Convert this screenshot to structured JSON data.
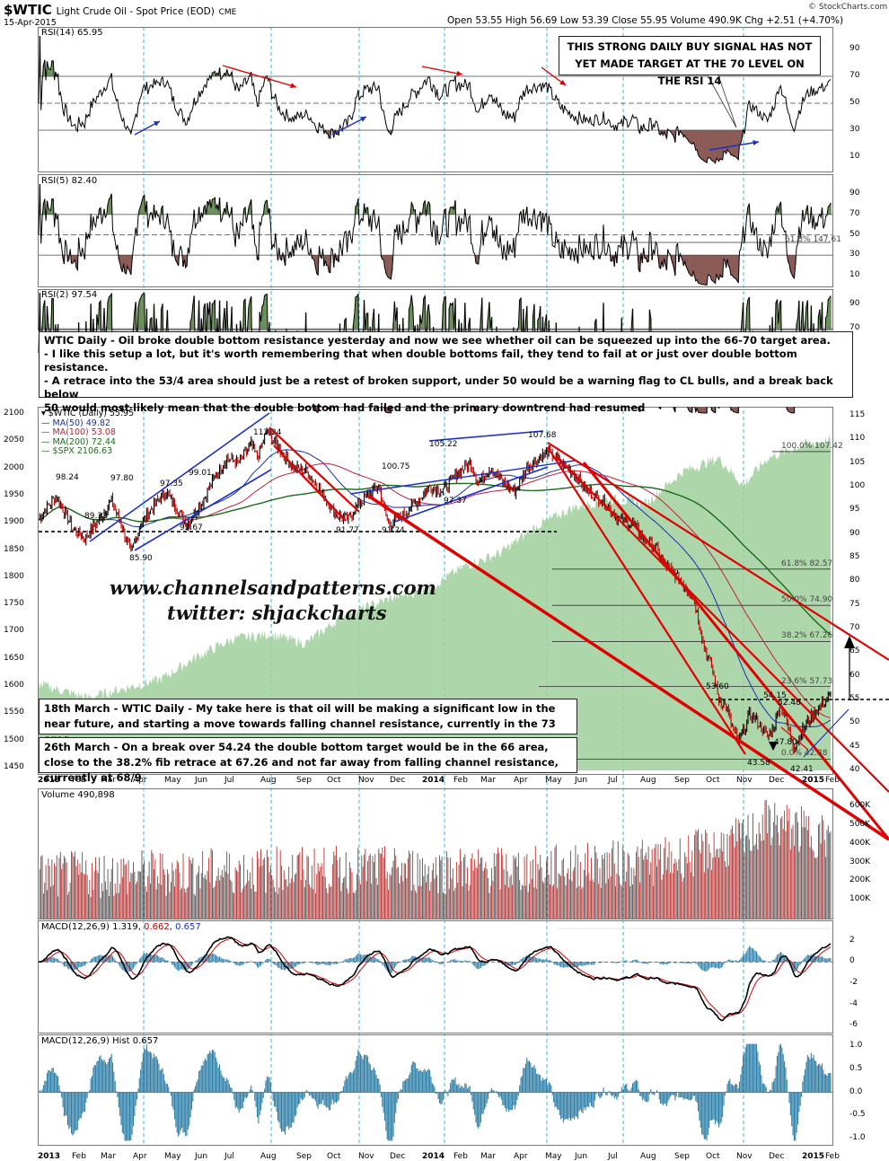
{
  "header": {
    "symbol": "$WTIC",
    "name": "Light Crude Oil - Spot Price (EOD)",
    "exchange": "CME",
    "date": "15-Apr-2015",
    "open_label": "Open",
    "open": "53.55",
    "high_label": "High",
    "high": "56.69",
    "low_label": "Low",
    "low": "53.39",
    "close_label": "Close",
    "close": "55.95",
    "volume_label": "Volume",
    "volume": "490.9K",
    "chg_label": "Chg",
    "chg": "+2.51 (+4.70%)",
    "credit": "© StockCharts.com"
  },
  "panels": {
    "rsi14": {
      "label": "RSI(14) 65.95",
      "ticks": [
        "90",
        "70",
        "50",
        "30",
        "10"
      ]
    },
    "rsi5": {
      "label": "RSI(5) 82.40",
      "ticks": [
        "90",
        "70",
        "50",
        "30",
        "10"
      ],
      "fib_label": "61.8% 147.61"
    },
    "rsi2": {
      "label": "RSI(2) 97.54",
      "ticks": [
        "90",
        "70"
      ]
    },
    "price": {
      "legend": [
        {
          "text": "$WTIC (Daily) 55.95",
          "color": "#000000"
        },
        {
          "text": "MA(50) 49.82",
          "color": "#1a2fb0"
        },
        {
          "text": "MA(100) 53.08",
          "color": "#c0203a"
        },
        {
          "text": "MA(200) 72.44",
          "color": "#1a6a1a"
        },
        {
          "text": "$SPX 2106.63",
          "color": "#1a6a1a"
        }
      ],
      "left_ticks": [
        "2100",
        "2050",
        "2000",
        "1950",
        "1900",
        "1850",
        "1800",
        "1750",
        "1700",
        "1650",
        "1600",
        "1550",
        "1500",
        "1450"
      ],
      "right_ticks": [
        "115",
        "110",
        "105",
        "100",
        "95",
        "90",
        "85",
        "80",
        "75",
        "70",
        "65",
        "60",
        "55",
        "50",
        "45",
        "40"
      ],
      "fib_labels": [
        "100.0% 107.42",
        "61.8% 82.57",
        "50.0% 74.90",
        "38.2% 67.26",
        "23.6% 57.73",
        "0.0% 42.38"
      ],
      "point_labels": [
        "98.24",
        "89.33",
        "97.80",
        "85.90",
        "97.35",
        "99.01",
        "92.67",
        "112.24",
        "91.77",
        "100.75",
        "91.24",
        "97.37",
        "105.22",
        "107.68",
        "53.60",
        "54.15",
        "52.48",
        "47.80",
        "43.58",
        "42.41"
      ]
    },
    "volume": {
      "label": "Volume 490,898",
      "ticks": [
        "600K",
        "500K",
        "400K",
        "300K",
        "200K",
        "100K"
      ]
    },
    "macd": {
      "label_prefix": "MACD(12,26,9)",
      "v1": "1.319",
      "v2": "0.662",
      "v3": "0.657",
      "ticks": [
        "2",
        "0",
        "-2",
        "-4",
        "-6"
      ]
    },
    "hist": {
      "label": "MACD(12,26,9) Hist 0.657",
      "ticks": [
        "1.0",
        "0.5",
        "0.0",
        "-0.5",
        "-1.0"
      ]
    }
  },
  "x_axis": [
    "2013",
    "Feb",
    "Mar",
    "Apr",
    "May",
    "Jun",
    "Jul",
    "Aug",
    "Sep",
    "Oct",
    "Nov",
    "Dec",
    "2014",
    "Feb",
    "Mar",
    "Apr",
    "May",
    "Jun",
    "Jul",
    "Aug",
    "Sep",
    "Oct",
    "Nov",
    "Dec",
    "2015",
    "Feb",
    "Mar",
    "Apr"
  ],
  "annotations": {
    "rsi_note": "THIS STRONG DAILY BUY SIGNAL HAS NOT YET MADE TARGET AT THE 70 LEVEL ON THE RSI 14",
    "main_note": [
      "WTIC Daily - Oil broke double bottom resistance yesterday and now we see whether oil can be squeezed up into the 66-70 target area.",
      "- I like this setup a lot, but it's worth remembering that when double bottoms fail, they tend to fail at or just over double bottom resistance.",
      "- A retrace into the 53/4 area should just be a retest of broken support, under 50 would be a warning flag to CL bulls, and a break back below",
      "50 would most likely mean that the double bottom had failed and the primary downtrend had resumed"
    ],
    "march18": "18th March - WTIC Daily - My take here is that oil will be making a significant low in the near future, and starting a move towards falling channel resistance, currently in the 73 area",
    "march26": "26th March - On a break over 54.24 the double bottom target would be in the 66 area, close to the 38.2% fib retrace at 67.26 and not far away from falling channel resistance, currently at 68/9",
    "watermark1": "www.channelsandpatterns.com",
    "watermark2": "twitter: shjackcharts"
  },
  "colors": {
    "price_up": "#000000",
    "price_down": "#c00000",
    "spx_fill": "#9fd09b",
    "channel": "#e00000",
    "trend_blue": "#1a2fd0",
    "vline": "#3ab8d0",
    "rsi_fill": "#6b8e5a",
    "rsi_low_fill": "#8b5a55",
    "hist_bar": "#2e7fa8"
  }
}
